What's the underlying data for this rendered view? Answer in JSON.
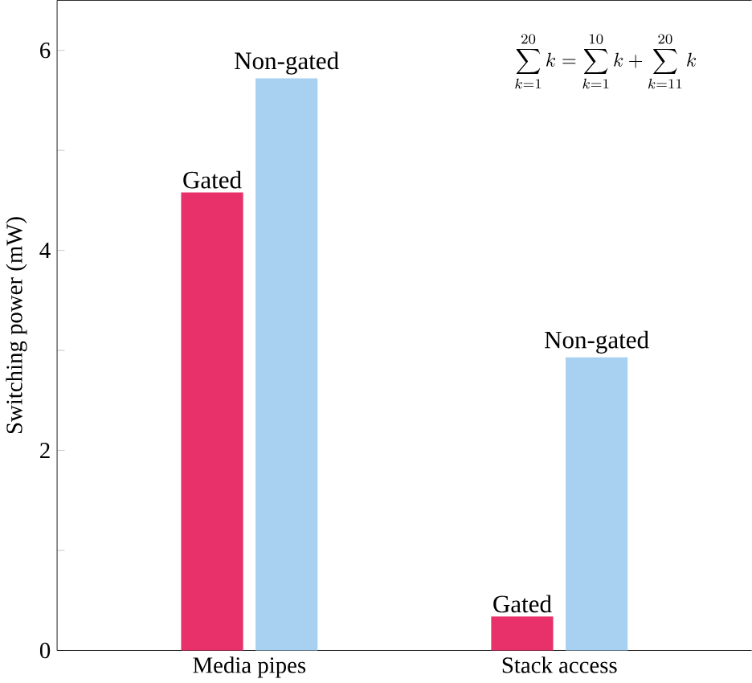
{
  "chart_data": {
    "type": "bar",
    "ylabel": "Switching power (mW)",
    "categories": [
      "Media pipes",
      "Stack access"
    ],
    "series": [
      {
        "name": "Gated",
        "color": "#e8306a",
        "values": [
          4.58,
          0.34
        ]
      },
      {
        "name": "Non-gated",
        "color": "#a8d0f0",
        "values": [
          5.72,
          2.93
        ]
      }
    ],
    "ylim": [
      0,
      6.5
    ],
    "yticks": [
      0,
      {
        "value": 1,
        "label": null
      },
      2,
      {
        "value": 3,
        "label": null
      },
      4,
      {
        "value": 5,
        "label": null
      },
      6
    ],
    "annotations": [
      "\\sum_{k=1}^{20} k=\\sum_{k=1}^{10} k+\\sum_{k=11}^{20} k"
    ],
    "grid": false,
    "legend": false
  }
}
